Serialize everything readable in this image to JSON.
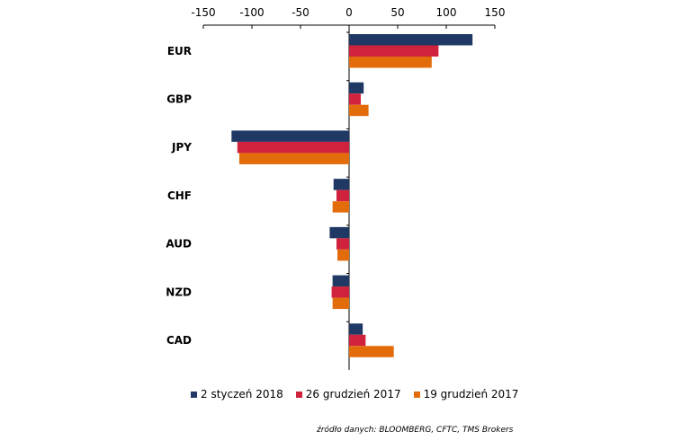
{
  "chart_data": {
    "type": "bar",
    "orientation": "horizontal",
    "categories": [
      "EUR",
      "GBP",
      "JPY",
      "CHF",
      "AUD",
      "NZD",
      "CAD"
    ],
    "series": [
      {
        "name": "2 styczeń 2018",
        "color": "#1f3864",
        "values": [
          127,
          15,
          -121,
          -16,
          -20,
          -17,
          14
        ]
      },
      {
        "name": "26 grudzień 2017",
        "color": "#d0223d",
        "values": [
          92,
          12,
          -115,
          -13,
          -13,
          -18,
          17
        ]
      },
      {
        "name": "19 grudzień 2017",
        "color": "#e36c0a",
        "values": [
          85,
          20,
          -113,
          -17,
          -12,
          -17,
          46
        ]
      }
    ],
    "xlim": [
      -150,
      150
    ],
    "xticks": [
      -150,
      -100,
      -50,
      0,
      50,
      100,
      150
    ],
    "tick_labels": [
      "-150",
      "-100",
      "-50",
      "0",
      "50",
      "100",
      "150"
    ],
    "axis_position": "top",
    "grid": false,
    "legend_position": "bottom"
  },
  "source_note": "źródło danych: BLOOMBERG, CFTC, TMS Brokers"
}
